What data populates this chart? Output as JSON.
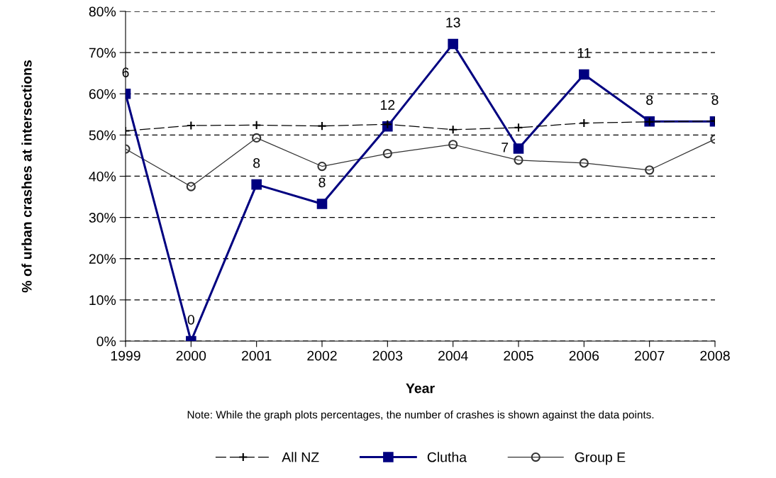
{
  "chart_data": {
    "type": "line",
    "xlabel": "Year",
    "ylabel": "% of urban crashes at intersections",
    "categories": [
      "1999",
      "2000",
      "2001",
      "2002",
      "2003",
      "2004",
      "2005",
      "2006",
      "2007",
      "2008"
    ],
    "ylim": [
      0,
      80
    ],
    "yticks": [
      {
        "value": 0,
        "label": "0%"
      },
      {
        "value": 10,
        "label": "10%"
      },
      {
        "value": 20,
        "label": "20%"
      },
      {
        "value": 30,
        "label": "30%"
      },
      {
        "value": 40,
        "label": "40%"
      },
      {
        "value": 50,
        "label": "50%"
      },
      {
        "value": 60,
        "label": "60%"
      },
      {
        "value": 70,
        "label": "70%"
      },
      {
        "value": 80,
        "label": "80%"
      }
    ],
    "grid": "y",
    "legend": "bottom",
    "series": [
      {
        "name": "All NZ",
        "color": "#000000",
        "marker": "cross",
        "line_style": "dashed",
        "values": [
          51.0,
          52.3,
          52.4,
          52.2,
          52.6,
          51.3,
          51.8,
          52.9,
          53.2,
          53.4
        ]
      },
      {
        "name": "Clutha",
        "color": "#000080",
        "marker": "square",
        "line_style": "solid",
        "values": [
          60.0,
          0.0,
          38.0,
          33.3,
          52.1,
          72.1,
          46.7,
          64.7,
          53.3,
          53.3
        ]
      },
      {
        "name": "Group E",
        "color": "#333333",
        "marker": "circle",
        "line_style": "solid",
        "values": [
          46.6,
          37.5,
          49.3,
          42.4,
          45.5,
          47.7,
          43.9,
          43.2,
          41.5,
          49.0
        ]
      }
    ],
    "annotations": [
      {
        "text": "6",
        "x": "1999",
        "y": 60.0
      },
      {
        "text": "0",
        "x": "2000",
        "y": 0.0
      },
      {
        "text": "8",
        "x": "2001",
        "y": 38.0
      },
      {
        "text": "8",
        "x": "2002",
        "y": 33.3
      },
      {
        "text": "12",
        "x": "2003",
        "y": 52.1
      },
      {
        "text": "13",
        "x": "2004",
        "y": 72.1
      },
      {
        "text": "7",
        "x": "2005",
        "y": 46.7
      },
      {
        "text": "11",
        "x": "2006",
        "y": 64.7
      },
      {
        "text": "8",
        "x": "2007",
        "y": 53.3
      },
      {
        "text": "8",
        "x": "2008",
        "y": 53.3
      },
      "Note: While the graph plots percentages, the number of crashes is shown against the data points."
    ]
  }
}
